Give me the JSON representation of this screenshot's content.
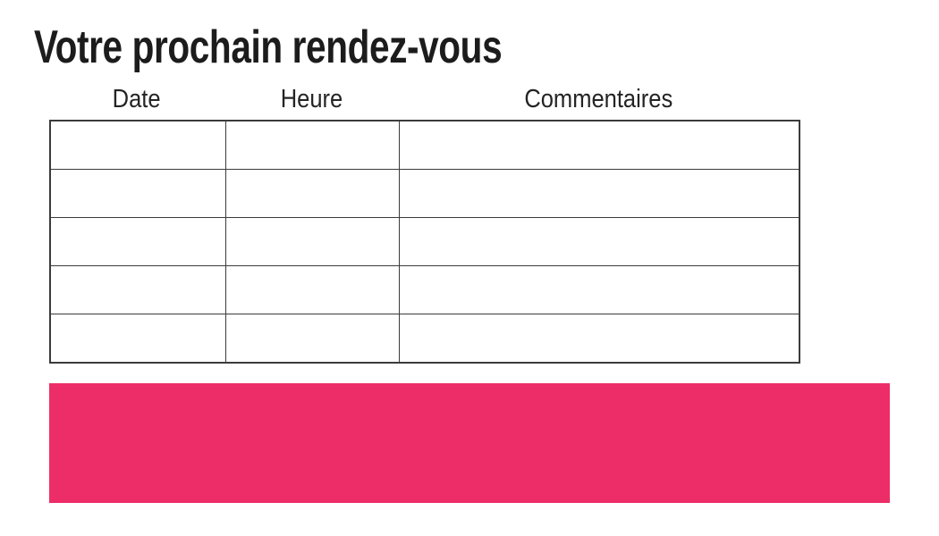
{
  "title": "Votre prochain rendez-vous",
  "table": {
    "headers": [
      "Date",
      "Heure",
      "Commentaires"
    ],
    "rows": [
      [
        "",
        "",
        ""
      ],
      [
        "",
        "",
        ""
      ],
      [
        "",
        "",
        ""
      ],
      [
        "",
        "",
        ""
      ],
      [
        "",
        "",
        ""
      ]
    ]
  },
  "colors": {
    "accent_pink": "#ED2D67",
    "table_border": "#3b3b3b",
    "text": "#1c1c1c"
  }
}
